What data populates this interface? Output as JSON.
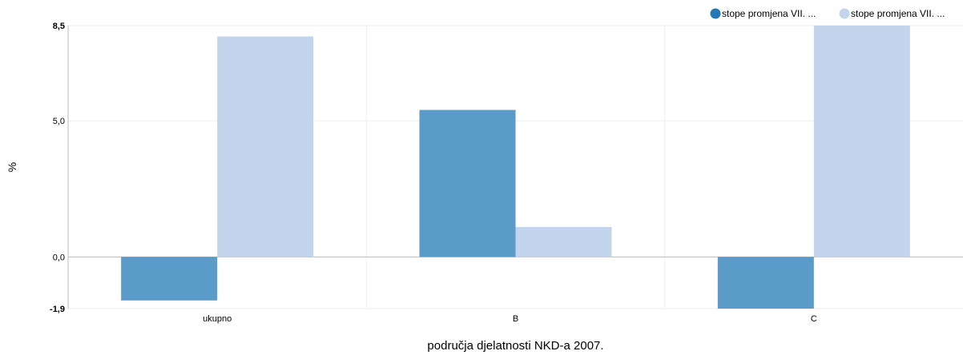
{
  "colors": {
    "series_1": "#5a9bc9",
    "series_1_legend": "#2577b5",
    "series_2": "#c2d5ed",
    "gridline": "#eeeeee",
    "axis": "#bbbbbb"
  },
  "chart_data": {
    "type": "bar",
    "categories": [
      "ukupno",
      "B",
      "C"
    ],
    "series": [
      {
        "name": "stope promjena VII. ...",
        "values": [
          -1.6,
          5.4,
          -1.9
        ]
      },
      {
        "name": "stope promjena VII. ...",
        "values": [
          8.1,
          1.1,
          8.5
        ]
      }
    ],
    "xlabel": "područja djelatnosti NKD-a 2007.",
    "ylabel": "%",
    "ylim": [
      -1.9,
      8.5
    ],
    "yticks": [
      {
        "value": -1.9,
        "label": "-1,9",
        "bold": true
      },
      {
        "value": 0,
        "label": "0,0",
        "bold": false
      },
      {
        "value": 5,
        "label": "5,0",
        "bold": false
      },
      {
        "value": 8.5,
        "label": "8,5",
        "bold": true
      }
    ],
    "grid": true,
    "legend_position": "top-right"
  }
}
